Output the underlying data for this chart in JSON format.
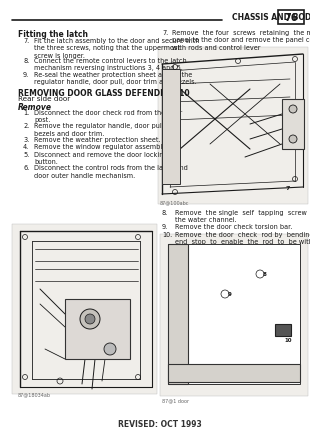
{
  "bg_color": "#ffffff",
  "page_bg": "#f5f3ef",
  "header_text": "CHASSIS AND BODY",
  "header_page": "76",
  "footer_text": "REVISED: OCT 1993",
  "title_fitting": "Fitting the latch",
  "title_removing": "REMOVING DOOR GLASS DEFENDER 110",
  "subtitle_removing": "Rear side door",
  "subtitle_remove": "Remove",
  "fitting_items": [
    [
      "7.",
      "Fit the latch assembly to the door and secure with\nthe three screws, noting that the uppermost\nscrew is longer."
    ],
    [
      "8.",
      "Connect the remote control levers to the latch\nmechanism reversing instructions 3, 4 and 5."
    ],
    [
      "9.",
      "Re-seal the weather protection sheet and fit the\nregulator handle, door pull, door trim and bezels."
    ]
  ],
  "remove_items": [
    [
      "1.",
      "Disconnect the door check rod from the door\npost."
    ],
    [
      "2.",
      "Remove the regulator handle, door pull,\nbezels and door trim."
    ],
    [
      "3.",
      "Remove the weather protection sheet."
    ],
    [
      "4.",
      "Remove the window regulator assembly."
    ],
    [
      "5.",
      "Disconnect and remove the door locking\nbutton."
    ],
    [
      "6.",
      "Disconnect the control rods from the latch and\ndoor outer handle mechanism."
    ]
  ],
  "right_col_top_items": [
    [
      "7.",
      "Remove  the four  screws  retaining  the mounting\npanel to the door and remove the panel complete\nwith rods and control lever"
    ]
  ],
  "right_col_bottom_items": [
    [
      "8.",
      "Remove  the single  self  tapping  screw  to remove\nthe water channel."
    ],
    [
      "9.",
      "Remove the door check torsion bar."
    ],
    [
      "10.",
      "Remove  the door  check  rod by  bending back the\nend  stop  to  enable  the  rod  to  be withdrawn."
    ]
  ],
  "text_color": "#1a1a1a",
  "line_color": "#1a1a1a",
  "diagram_bg": "#f0eeea"
}
